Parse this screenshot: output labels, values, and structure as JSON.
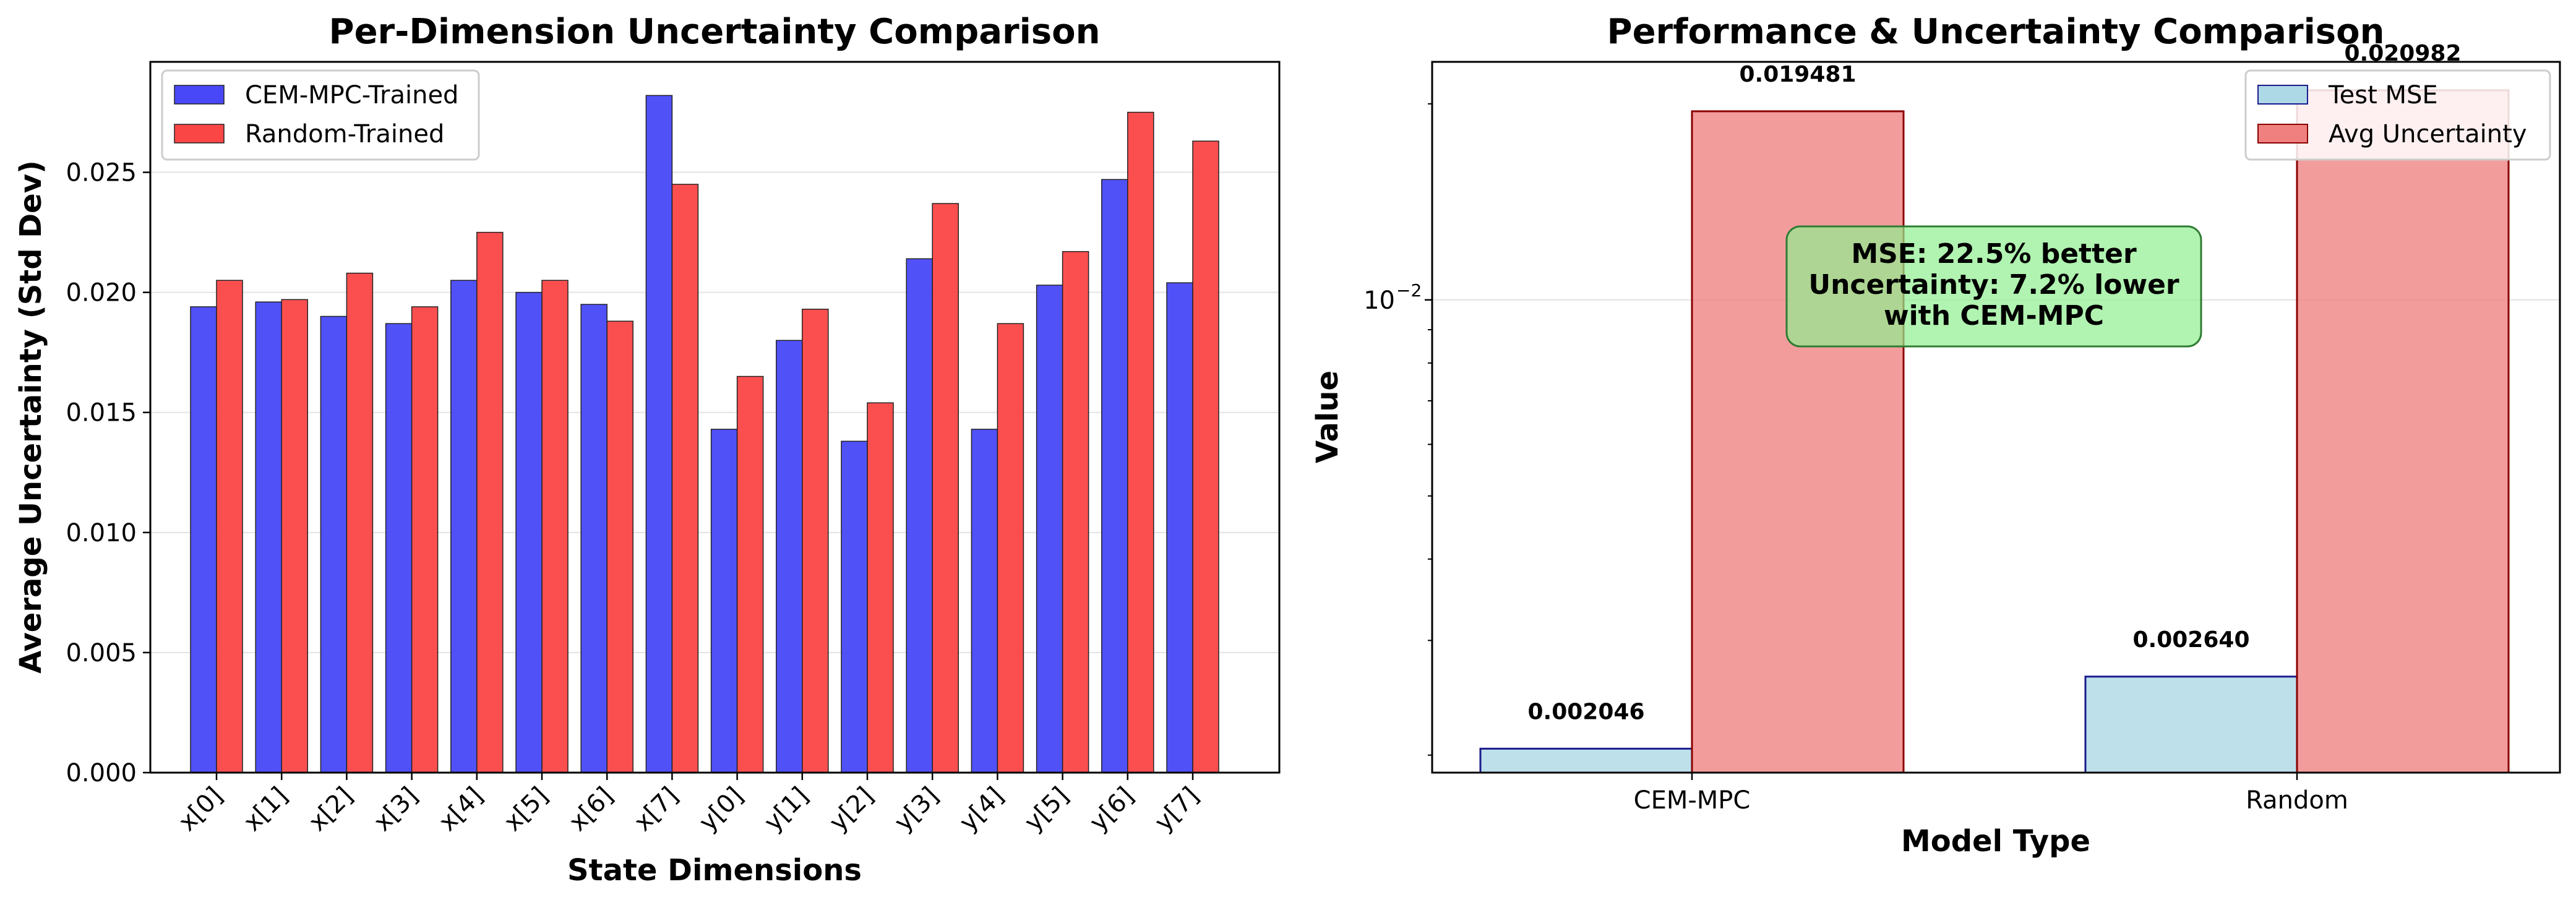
{
  "chart_data": [
    {
      "type": "bar",
      "title": "Per-Dimension Uncertainty Comparison",
      "xlabel": "State Dimensions",
      "ylabel": "Average Uncertainty (Std Dev)",
      "categories": [
        "x[0]",
        "x[1]",
        "x[2]",
        "x[3]",
        "x[4]",
        "x[5]",
        "x[6]",
        "x[7]",
        "y[0]",
        "y[1]",
        "y[2]",
        "y[3]",
        "y[4]",
        "y[5]",
        "y[6]",
        "y[7]"
      ],
      "series": [
        {
          "name": "CEM-MPC-Trained",
          "color": "#4848f8",
          "values": [
            0.0194,
            0.0196,
            0.019,
            0.0187,
            0.0205,
            0.02,
            0.0195,
            0.0282,
            0.0143,
            0.018,
            0.0138,
            0.0214,
            0.0143,
            0.0203,
            0.0247,
            0.0204
          ]
        },
        {
          "name": "Random-Trained",
          "color": "#fb4646",
          "values": [
            0.0205,
            0.0197,
            0.0208,
            0.0194,
            0.0225,
            0.0205,
            0.0188,
            0.0245,
            0.0165,
            0.0193,
            0.0154,
            0.0237,
            0.0187,
            0.0217,
            0.0275,
            0.0263
          ]
        }
      ],
      "ylim": [
        0,
        0.0296
      ],
      "yticks": [
        0.0,
        0.005,
        0.01,
        0.015,
        0.02,
        0.025
      ],
      "ytick_labels": [
        "0.000",
        "0.005",
        "0.010",
        "0.015",
        "0.020",
        "0.025"
      ],
      "grid": "y",
      "legend": "top-left"
    },
    {
      "type": "bar",
      "title": "Performance & Uncertainty Comparison",
      "xlabel": "Model Type",
      "ylabel": "Value",
      "yscale": "log",
      "categories": [
        "CEM-MPC",
        "Random"
      ],
      "series": [
        {
          "name": "Test MSE",
          "color": "#add8e6",
          "edge": "#1a1a8c",
          "values": [
            0.002046,
            0.00264
          ],
          "labels": [
            "0.002046",
            "0.002640"
          ]
        },
        {
          "name": "Avg Uncertainty",
          "color": "#f08080",
          "edge": "#8b0000",
          "values": [
            0.019481,
            0.020982
          ],
          "labels": [
            "0.019481",
            "0.020982"
          ]
        }
      ],
      "ylim": [
        0.00188,
        0.0232
      ],
      "major_tick_label": {
        "base": "10",
        "exp": "−2",
        "value": 0.01
      },
      "minor_ticks": [
        0.002,
        0.003,
        0.004,
        0.005,
        0.006,
        0.007,
        0.008,
        0.009,
        0.02
      ],
      "grid": "y",
      "legend": "top-right",
      "annotation": {
        "lines": [
          "MSE: 22.5% better",
          "Uncertainty: 7.2% lower",
          "with CEM-MPC"
        ],
        "bg": "#90ee90",
        "border": "#2e7d32"
      }
    }
  ]
}
